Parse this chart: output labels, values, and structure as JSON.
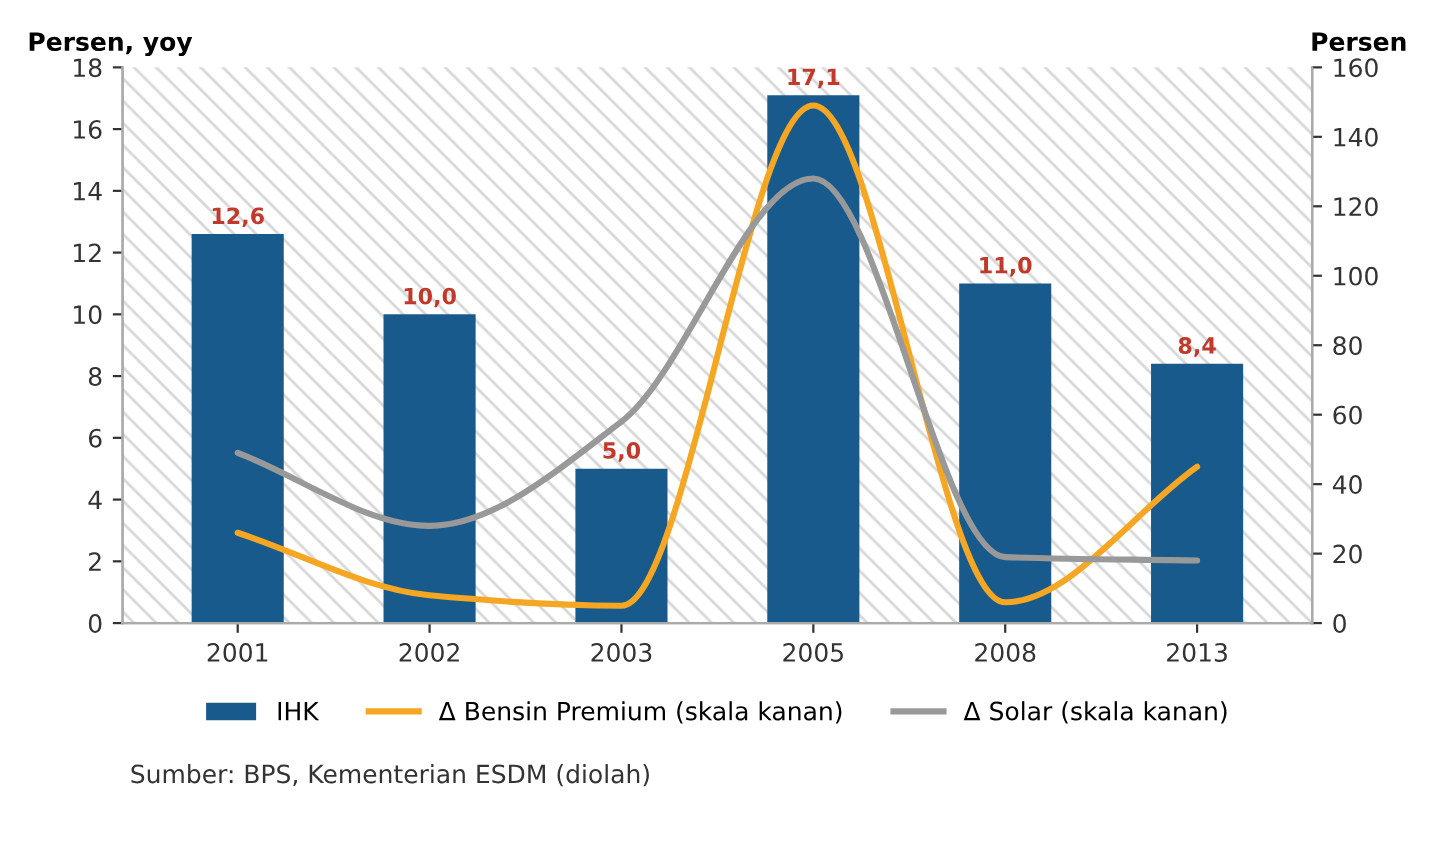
{
  "chart_data": {
    "type": "bar",
    "ylabel": "Persen, yoy",
    "y2label": "Persen",
    "categories": [
      "2001",
      "2002",
      "2003",
      "2005",
      "2008",
      "2013"
    ],
    "series": [
      {
        "name": "IHK",
        "color": "#185a8c",
        "values": [
          12.6,
          10.0,
          5.0,
          17.1,
          11.0,
          8.4
        ],
        "value_labels": [
          "12,6",
          "10,0",
          "5,0",
          "17,1",
          "11,0",
          "8,4"
        ]
      },
      {
        "name": "Δ Bensin Premium (skala kanan)",
        "type": "line",
        "axis": "y2",
        "color": "#f5a623",
        "values": [
          26,
          8,
          5,
          149,
          6,
          45
        ]
      },
      {
        "name": "Δ Solar (skala kanan)",
        "type": "line",
        "axis": "y2",
        "color": "#999999",
        "values": [
          49,
          28,
          58,
          128,
          19,
          18
        ]
      }
    ],
    "ylim": [
      0,
      18
    ],
    "yticks": [
      0,
      2,
      4,
      6,
      8,
      10,
      12,
      14,
      16,
      18
    ],
    "y2lim": [
      0,
      160
    ],
    "y2ticks": [
      0,
      20,
      40,
      60,
      80,
      100,
      120,
      140,
      160
    ],
    "legend": "bottom",
    "grid": false,
    "annotations": [
      "Sumber: BPS, Kementerian ESDM (diolah)"
    ]
  }
}
